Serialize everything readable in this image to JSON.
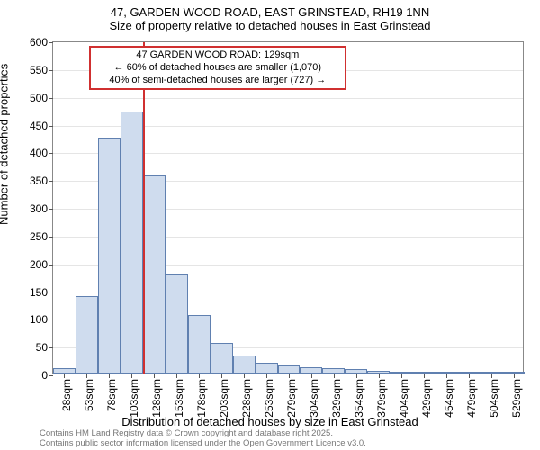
{
  "title": "47, GARDEN WOOD ROAD, EAST GRINSTEAD, RH19 1NN",
  "subtitle": "Size of property relative to detached houses in East Grinstead",
  "ylabel": "Number of detached properties",
  "xlabel": "Distribution of detached houses by size in East Grinstead",
  "footer_line1": "Contains HM Land Registry data © Crown copyright and database right 2025.",
  "footer_line2": "Contains public sector information licensed under the Open Government Licence v3.0.",
  "chart": {
    "type": "histogram",
    "ylim": [
      0,
      600
    ],
    "ytick_step": 50,
    "x_categories": [
      "28sqm",
      "53sqm",
      "78sqm",
      "103sqm",
      "128sqm",
      "153sqm",
      "178sqm",
      "203sqm",
      "228sqm",
      "253sqm",
      "279sqm",
      "304sqm",
      "329sqm",
      "354sqm",
      "379sqm",
      "404sqm",
      "429sqm",
      "454sqm",
      "479sqm",
      "504sqm",
      "529sqm"
    ],
    "values": [
      10,
      140,
      425,
      472,
      357,
      180,
      105,
      55,
      32,
      20,
      15,
      12,
      10,
      8,
      5,
      4,
      3,
      2,
      2,
      2,
      2
    ],
    "bar_fill": "#cfdcee",
    "bar_stroke": "#6080b0",
    "grid_color": "#e5e5e5",
    "background_color": "#ffffff",
    "axis_color": "#888888",
    "marker": {
      "position_index": 4,
      "color": "#d03030",
      "box_bg": "#ffffff",
      "line1": "47 GARDEN WOOD ROAD: 129sqm",
      "line2": "← 60% of detached houses are smaller (1,070)",
      "line3": "40% of semi-detached houses are larger (727) →"
    },
    "label_fontsize": 13,
    "tick_fontsize": 12
  }
}
